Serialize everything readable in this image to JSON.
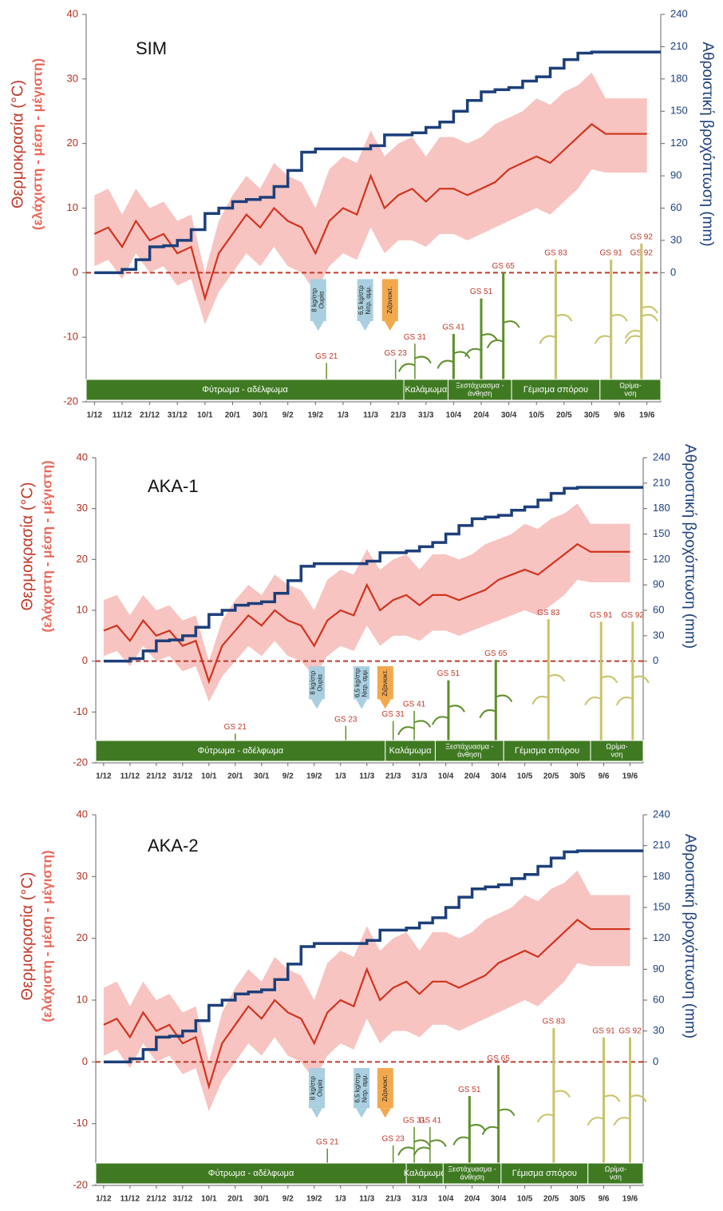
{
  "chart_data": [
    {
      "type": "line",
      "title": "SIM",
      "y_label": "Θερμοκρασία (°C)",
      "y_label_sub": "(ελάχιστη - μέση - μέγιστη)",
      "y2_label": "Αθροιστική βροχόπτωση (mm)",
      "x": [
        0,
        5,
        10,
        15,
        20,
        25,
        30,
        35,
        40,
        45,
        50,
        55,
        60,
        65,
        70,
        75,
        80,
        85,
        90,
        95,
        100,
        105,
        110,
        115,
        120,
        125,
        130,
        135,
        140,
        145,
        150,
        155,
        160,
        165,
        170,
        175,
        180,
        185,
        190,
        195,
        200
      ],
      "xlim": [
        -3,
        205
      ],
      "xticks": [
        {
          "value": 0,
          "label": "1/12"
        },
        {
          "value": 10,
          "label": "11/12"
        },
        {
          "value": 20,
          "label": "21/12"
        },
        {
          "value": 30,
          "label": "31/12"
        },
        {
          "value": 40,
          "label": "10/1"
        },
        {
          "value": 50,
          "label": "20/1"
        },
        {
          "value": 60,
          "label": "30/1"
        },
        {
          "value": 70,
          "label": "9/2"
        },
        {
          "value": 80,
          "label": "19/2"
        },
        {
          "value": 90,
          "label": "1/3"
        },
        {
          "value": 100,
          "label": "11/3"
        },
        {
          "value": 110,
          "label": "21/3"
        },
        {
          "value": 120,
          "label": "31/3"
        },
        {
          "value": 130,
          "label": "10/4"
        },
        {
          "value": 140,
          "label": "20/4"
        },
        {
          "value": 150,
          "label": "30/4"
        },
        {
          "value": 160,
          "label": "10/5"
        },
        {
          "value": 170,
          "label": "20/5"
        },
        {
          "value": 180,
          "label": "30/5"
        },
        {
          "value": 190,
          "label": "9/6"
        },
        {
          "value": 200,
          "label": "19/6"
        }
      ],
      "ylim": [
        -20,
        40
      ],
      "yticks": [
        -20,
        -10,
        0,
        10,
        20,
        30,
        40
      ],
      "y2lim": [
        -120,
        240
      ],
      "y2ticks": [
        0,
        30,
        60,
        90,
        120,
        150,
        180,
        210,
        240
      ],
      "zero_line": true,
      "t_min": {
        "color": "#f5b5b1",
        "values": [
          1,
          2,
          -1,
          3,
          0,
          1,
          -2,
          -1,
          -8,
          -3,
          0,
          3,
          1,
          4,
          1,
          0,
          -3,
          1,
          3,
          2,
          7,
          3,
          5,
          5,
          4,
          6,
          6,
          5,
          6,
          7,
          8,
          9,
          10,
          9,
          11,
          13,
          16,
          15.5,
          15.5,
          15.5,
          15.5
        ]
      },
      "t_mean": {
        "color": "#d0341f",
        "values": [
          6,
          7,
          4,
          8,
          5,
          6,
          3,
          4,
          -4,
          3,
          6,
          9,
          7,
          10,
          8,
          7,
          3,
          8,
          10,
          9,
          15,
          10,
          12,
          13,
          11,
          13,
          13,
          12,
          13,
          14,
          16,
          17,
          18,
          17,
          19,
          21,
          23,
          21.5,
          21.5,
          21.5,
          21.5
        ]
      },
      "t_max": {
        "color": "#f5b5b1",
        "values": [
          12,
          13,
          9,
          13,
          10,
          11,
          8,
          9,
          0,
          8,
          12,
          15,
          13,
          17,
          15,
          14,
          10,
          16,
          18,
          17,
          22,
          18,
          20,
          21,
          18,
          21,
          21,
          20,
          21,
          23,
          24,
          25,
          27,
          26,
          28,
          29,
          31,
          27,
          27,
          27,
          27
        ]
      },
      "rainfall": {
        "color": "#1c3f7a",
        "axis": "y2",
        "values": [
          0,
          0,
          3,
          12,
          24,
          25,
          30,
          40,
          55,
          60,
          66,
          68,
          70,
          80,
          95,
          112,
          115,
          115,
          115,
          115,
          118,
          128,
          128,
          130,
          135,
          140,
          150,
          160,
          168,
          170,
          172,
          178,
          182,
          190,
          198,
          204,
          205,
          205,
          205,
          205,
          205
        ]
      },
      "stages": [
        {
          "lines": [
            "Φύτρωμα - αδέλφωμα"
          ],
          "from": -3,
          "to": 112
        },
        {
          "lines": [
            "Καλάμωμα"
          ],
          "from": 112,
          "to": 128
        },
        {
          "lines": [
            "Ξεστάχυασμα -",
            "άνθηση"
          ],
          "from": 128,
          "to": 151
        },
        {
          "lines": [
            "Γέμισμα σπόρου"
          ],
          "from": 151,
          "to": 183
        },
        {
          "lines": [
            "Ωρίμα-",
            "νση"
          ],
          "from": 183,
          "to": 205
        }
      ],
      "growth_stages": [
        "GS 21",
        "GS 23",
        "GS 31",
        "GS 41",
        "GS 51",
        "GS 65",
        "GS 83",
        "GS 91",
        "GS 92",
        "GS 92"
      ],
      "applications": [
        {
          "lines": [
            "8 kg/στρ",
            "Ουρία"
          ],
          "color": "#a9cfe0"
        },
        {
          "lines": [
            "6,5 kg/στρ",
            "Νιτρ. αμμ."
          ],
          "color": "#a9cfe0"
        },
        {
          "lines": [
            "Ζιζανιοκτ."
          ],
          "color": "#f2a94e"
        }
      ]
    },
    {
      "type": "line",
      "title": "AKA-1",
      "y_label": "Θερμοκρασία (°C)",
      "y_label_sub": "(ελάχιστη - μέση - μέγιστη)",
      "y2_label": "Αθροιστική βροχόπτωση (mm)",
      "x": [
        0,
        5,
        10,
        15,
        20,
        25,
        30,
        35,
        40,
        45,
        50,
        55,
        60,
        65,
        70,
        75,
        80,
        85,
        90,
        95,
        100,
        105,
        110,
        115,
        120,
        125,
        130,
        135,
        140,
        145,
        150,
        155,
        160,
        165,
        170,
        175,
        180,
        185,
        190,
        195,
        200
      ],
      "xlim": [
        -3,
        205
      ],
      "xticks": [
        {
          "value": 0,
          "label": "1/12"
        },
        {
          "value": 10,
          "label": "11/12"
        },
        {
          "value": 20,
          "label": "21/12"
        },
        {
          "value": 30,
          "label": "31/12"
        },
        {
          "value": 40,
          "label": "10/1"
        },
        {
          "value": 50,
          "label": "20/1"
        },
        {
          "value": 60,
          "label": "30/1"
        },
        {
          "value": 70,
          "label": "9/2"
        },
        {
          "value": 80,
          "label": "19/2"
        },
        {
          "value": 90,
          "label": "1/3"
        },
        {
          "value": 100,
          "label": "11/3"
        },
        {
          "value": 110,
          "label": "21/3"
        },
        {
          "value": 120,
          "label": "31/3"
        },
        {
          "value": 130,
          "label": "10/4"
        },
        {
          "value": 140,
          "label": "20/4"
        },
        {
          "value": 150,
          "label": "30/4"
        },
        {
          "value": 160,
          "label": "10/5"
        },
        {
          "value": 170,
          "label": "20/5"
        },
        {
          "value": 180,
          "label": "30/5"
        },
        {
          "value": 190,
          "label": "9/6"
        },
        {
          "value": 200,
          "label": "19/6"
        }
      ],
      "ylim": [
        -20,
        40
      ],
      "yticks": [
        -20,
        -10,
        0,
        10,
        20,
        30,
        40
      ],
      "y2lim": [
        -120,
        240
      ],
      "y2ticks": [
        0,
        30,
        60,
        90,
        120,
        150,
        180,
        210,
        240
      ],
      "zero_line": true,
      "t_min": {
        "color": "#f5b5b1",
        "values": [
          1,
          2,
          -1,
          3,
          0,
          1,
          -2,
          -1,
          -8,
          -3,
          0,
          3,
          1,
          4,
          1,
          0,
          -3,
          1,
          3,
          2,
          7,
          3,
          5,
          5,
          4,
          6,
          6,
          5,
          6,
          7,
          8,
          9,
          10,
          9,
          11,
          13,
          16,
          15.5,
          15.5,
          15.5,
          15.5
        ]
      },
      "t_mean": {
        "color": "#d0341f",
        "values": [
          6,
          7,
          4,
          8,
          5,
          6,
          3,
          4,
          -4,
          3,
          6,
          9,
          7,
          10,
          8,
          7,
          3,
          8,
          10,
          9,
          15,
          10,
          12,
          13,
          11,
          13,
          13,
          12,
          13,
          14,
          16,
          17,
          18,
          17,
          19,
          21,
          23,
          21.5,
          21.5,
          21.5,
          21.5
        ]
      },
      "t_max": {
        "color": "#f5b5b1",
        "values": [
          12,
          13,
          9,
          13,
          10,
          11,
          8,
          9,
          0,
          8,
          12,
          15,
          13,
          17,
          15,
          14,
          10,
          16,
          18,
          17,
          22,
          18,
          20,
          21,
          18,
          21,
          21,
          20,
          21,
          23,
          24,
          25,
          27,
          26,
          28,
          29,
          31,
          27,
          27,
          27,
          27
        ]
      },
      "rainfall": {
        "color": "#1c3f7a",
        "axis": "y2",
        "values": [
          0,
          0,
          3,
          12,
          24,
          25,
          30,
          40,
          55,
          60,
          66,
          68,
          70,
          80,
          95,
          112,
          115,
          115,
          115,
          115,
          118,
          128,
          128,
          130,
          135,
          140,
          150,
          160,
          168,
          170,
          172,
          178,
          182,
          190,
          198,
          204,
          205,
          205,
          205,
          205,
          205
        ]
      },
      "stages": [
        {
          "lines": [
            "Φύτρωμα - αδέλφωμα"
          ],
          "from": -3,
          "to": 107
        },
        {
          "lines": [
            "Καλάμωμα"
          ],
          "from": 107,
          "to": 126
        },
        {
          "lines": [
            "Ξεστάχυασμα -",
            "άνθηση"
          ],
          "from": 126,
          "to": 152
        },
        {
          "lines": [
            "Γέμισμα σπόρου"
          ],
          "from": 152,
          "to": 185
        },
        {
          "lines": [
            "Ωρίμα-",
            "νση"
          ],
          "from": 185,
          "to": 205
        }
      ],
      "growth_stages": [
        "GS 21",
        "GS 23",
        "GS 31",
        "GS 41",
        "GS 51",
        "GS 65",
        "GS 83",
        "GS 91",
        "GS 92"
      ],
      "applications": [
        {
          "lines": [
            "8 kg/στρ",
            "Ουρία"
          ],
          "color": "#a9cfe0"
        },
        {
          "lines": [
            "6,5 kg/στρ",
            "Νιτρ. αμμ."
          ],
          "color": "#a9cfe0"
        },
        {
          "lines": [
            "Ζιζανιοκτ."
          ],
          "color": "#f2a94e"
        }
      ]
    },
    {
      "type": "line",
      "title": "AKA-2",
      "y_label": "Θερμοκρασία (°C)",
      "y_label_sub": "(ελάχιστη - μέση - μέγιστη)",
      "y2_label": "Αθροιστική βροχόπτωση (mm)",
      "x": [
        0,
        5,
        10,
        15,
        20,
        25,
        30,
        35,
        40,
        45,
        50,
        55,
        60,
        65,
        70,
        75,
        80,
        85,
        90,
        95,
        100,
        105,
        110,
        115,
        120,
        125,
        130,
        135,
        140,
        145,
        150,
        155,
        160,
        165,
        170,
        175,
        180,
        185,
        190,
        195,
        200
      ],
      "xlim": [
        -3,
        205
      ],
      "xticks": [
        {
          "value": 0,
          "label": "1/12"
        },
        {
          "value": 10,
          "label": "11/12"
        },
        {
          "value": 20,
          "label": "21/12"
        },
        {
          "value": 30,
          "label": "31/12"
        },
        {
          "value": 40,
          "label": "10/1"
        },
        {
          "value": 50,
          "label": "20/1"
        },
        {
          "value": 60,
          "label": "30/1"
        },
        {
          "value": 70,
          "label": "9/2"
        },
        {
          "value": 80,
          "label": "19/2"
        },
        {
          "value": 90,
          "label": "1/3"
        },
        {
          "value": 100,
          "label": "11/3"
        },
        {
          "value": 110,
          "label": "21/3"
        },
        {
          "value": 120,
          "label": "31/3"
        },
        {
          "value": 130,
          "label": "10/4"
        },
        {
          "value": 140,
          "label": "20/4"
        },
        {
          "value": 150,
          "label": "30/4"
        },
        {
          "value": 160,
          "label": "10/5"
        },
        {
          "value": 170,
          "label": "20/5"
        },
        {
          "value": 180,
          "label": "30/5"
        },
        {
          "value": 190,
          "label": "9/6"
        },
        {
          "value": 200,
          "label": "19/6"
        }
      ],
      "ylim": [
        -20,
        40
      ],
      "yticks": [
        -20,
        -10,
        0,
        10,
        20,
        30,
        40
      ],
      "y2lim": [
        -120,
        240
      ],
      "y2ticks": [
        0,
        30,
        60,
        90,
        120,
        150,
        180,
        210,
        240
      ],
      "zero_line": true,
      "t_min": {
        "color": "#f5b5b1",
        "values": [
          1,
          2,
          -1,
          3,
          0,
          1,
          -2,
          -1,
          -8,
          -3,
          0,
          3,
          1,
          4,
          1,
          0,
          -3,
          1,
          3,
          2,
          7,
          3,
          5,
          5,
          4,
          6,
          6,
          5,
          6,
          7,
          8,
          9,
          10,
          9,
          11,
          13,
          16,
          15.5,
          15.5,
          15.5,
          15.5
        ]
      },
      "t_mean": {
        "color": "#d0341f",
        "values": [
          6,
          7,
          4,
          8,
          5,
          6,
          3,
          4,
          -4,
          3,
          6,
          9,
          7,
          10,
          8,
          7,
          3,
          8,
          10,
          9,
          15,
          10,
          12,
          13,
          11,
          13,
          13,
          12,
          13,
          14,
          16,
          17,
          18,
          17,
          19,
          21,
          23,
          21.5,
          21.5,
          21.5,
          21.5
        ]
      },
      "t_max": {
        "color": "#f5b5b1",
        "values": [
          12,
          13,
          9,
          13,
          10,
          11,
          8,
          9,
          0,
          8,
          12,
          15,
          13,
          17,
          15,
          14,
          10,
          16,
          18,
          17,
          22,
          18,
          20,
          21,
          18,
          21,
          21,
          20,
          21,
          23,
          24,
          25,
          27,
          26,
          28,
          29,
          31,
          27,
          27,
          27,
          27
        ]
      },
      "rainfall": {
        "color": "#1c3f7a",
        "axis": "y2",
        "values": [
          0,
          0,
          3,
          12,
          24,
          25,
          30,
          40,
          55,
          60,
          66,
          68,
          70,
          80,
          95,
          112,
          115,
          115,
          115,
          115,
          118,
          128,
          128,
          130,
          135,
          140,
          150,
          160,
          168,
          170,
          172,
          178,
          182,
          190,
          198,
          204,
          205,
          205,
          205,
          205,
          205
        ]
      },
      "stages": [
        {
          "lines": [
            "Φύτρωμα - αδέλφωμα"
          ],
          "from": -3,
          "to": 115
        },
        {
          "lines": [
            "Καλάμωμα"
          ],
          "from": 115,
          "to": 129
        },
        {
          "lines": [
            "Ξεστάχυασμα -",
            "άνθηση"
          ],
          "from": 129,
          "to": 151
        },
        {
          "lines": [
            "Γέμισμα σπόρου"
          ],
          "from": 151,
          "to": 184
        },
        {
          "lines": [
            "Ωρίμα-",
            "νση"
          ],
          "from": 184,
          "to": 205
        }
      ],
      "growth_stages": [
        "GS 21",
        "GS 23",
        "GS 31",
        "GS 41",
        "GS 51",
        "GS 65",
        "GS 83",
        "GS 91",
        "GS 92"
      ],
      "applications": [
        {
          "lines": [
            "8 kg/στρ",
            "Ουρία"
          ],
          "color": "#a9cfe0"
        },
        {
          "lines": [
            "6,5 kg/στρ",
            "Νιτρ. αμμ."
          ],
          "color": "#a9cfe0"
        },
        {
          "lines": [
            "Ζιζανιοκτ."
          ],
          "color": "#f2a94e"
        }
      ]
    }
  ]
}
